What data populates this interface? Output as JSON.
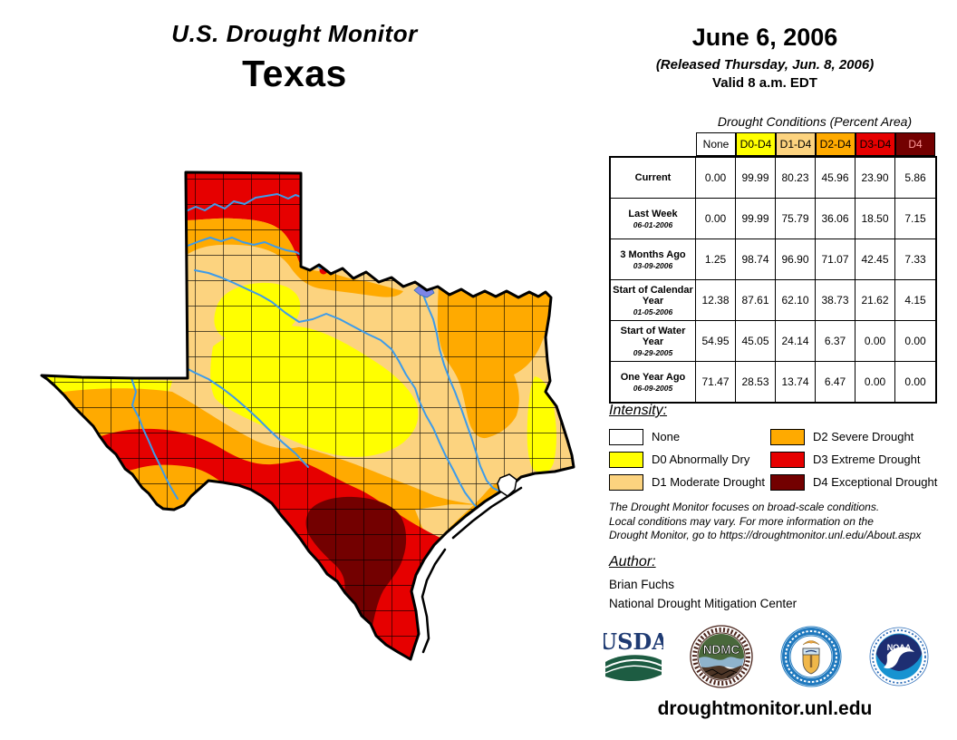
{
  "header": {
    "title": "U.S. Drought Monitor",
    "region": "Texas",
    "date": "June 6, 2006",
    "released": "(Released Thursday, Jun. 8, 2006)",
    "valid": "Valid 8 a.m. EDT"
  },
  "table": {
    "caption": "Drought Conditions (Percent Area)",
    "columns": [
      {
        "label": "None",
        "bg": "none",
        "fg": "#000000"
      },
      {
        "label": "D0-D4",
        "bg": "d0",
        "fg": "#000000"
      },
      {
        "label": "D1-D4",
        "bg": "d1",
        "fg": "#000000"
      },
      {
        "label": "D2-D4",
        "bg": "d2",
        "fg": "#000000"
      },
      {
        "label": "D3-D4",
        "bg": "d3",
        "fg": "#000000"
      },
      {
        "label": "D4",
        "bg": "d4",
        "fg": "#FF9999"
      }
    ],
    "rows": [
      {
        "label": "Current",
        "date": "",
        "values": [
          "0.00",
          "99.99",
          "80.23",
          "45.96",
          "23.90",
          "5.86"
        ]
      },
      {
        "label": "Last Week",
        "date": "06-01-2006",
        "values": [
          "0.00",
          "99.99",
          "75.79",
          "36.06",
          "18.50",
          "7.15"
        ]
      },
      {
        "label": "3 Months Ago",
        "date": "03-09-2006",
        "values": [
          "1.25",
          "98.74",
          "96.90",
          "71.07",
          "42.45",
          "7.33"
        ]
      },
      {
        "label": "Start of Calendar Year",
        "date": "01-05-2006",
        "values": [
          "12.38",
          "87.61",
          "62.10",
          "38.73",
          "21.62",
          "4.15"
        ]
      },
      {
        "label": "Start of Water Year",
        "date": "09-29-2005",
        "values": [
          "54.95",
          "45.05",
          "24.14",
          "6.37",
          "0.00",
          "0.00"
        ]
      },
      {
        "label": "One Year Ago",
        "date": "06-09-2005",
        "values": [
          "71.47",
          "28.53",
          "13.74",
          "6.47",
          "0.00",
          "0.00"
        ]
      }
    ]
  },
  "legend": {
    "title": "Intensity:",
    "items": [
      {
        "label": "None",
        "color": "none"
      },
      {
        "label": "D0 Abnormally Dry",
        "color": "d0"
      },
      {
        "label": "D1 Moderate Drought",
        "color": "d1"
      },
      {
        "label": "D2 Severe Drought",
        "color": "d2"
      },
      {
        "label": "D3 Extreme Drought",
        "color": "d3"
      },
      {
        "label": "D4 Exceptional Drought",
        "color": "d4"
      }
    ]
  },
  "notes": {
    "line1": "The Drought Monitor focuses on broad-scale conditions.",
    "line2": "Local conditions may vary. For more information on the",
    "line3": "Drought Monitor, go to https://droughtmonitor.unl.edu/About.aspx"
  },
  "author": {
    "title": "Author:",
    "name": "Brian Fuchs",
    "org": "National Drought Mitigation Center"
  },
  "logos": {
    "usda": "USDA",
    "ndmc": "NDMC",
    "noaa": "NOAA"
  },
  "footer": {
    "url": "droughtmonitor.unl.edu"
  },
  "map": {
    "region": "Texas",
    "palette": {
      "none": "#FFFFFF",
      "d0": "#FFFF00",
      "d1": "#FCD37F",
      "d2": "#FFAA00",
      "d3": "#E60000",
      "d4": "#730000",
      "river": "#3D9BE9",
      "lake": "#7D85E6"
    }
  }
}
